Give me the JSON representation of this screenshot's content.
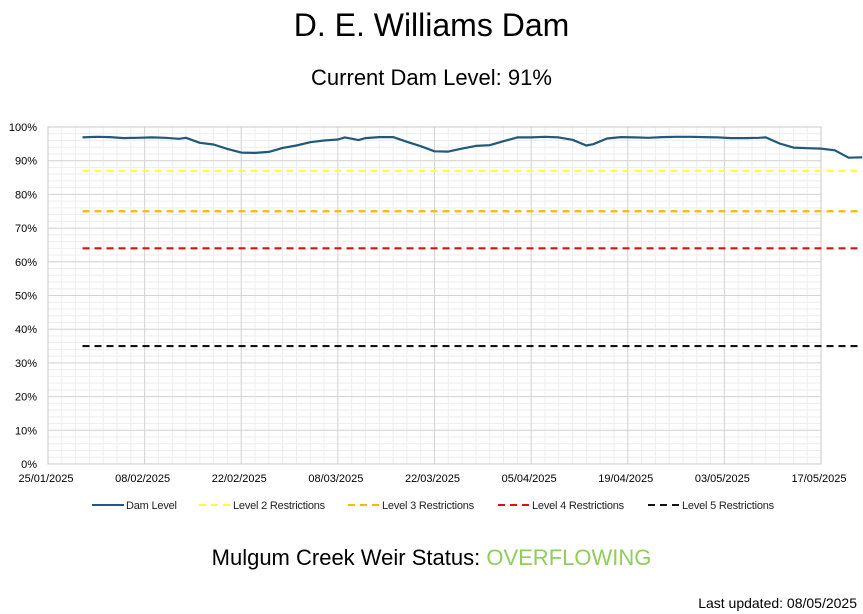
{
  "page": {
    "title": "D. E. Williams Dam",
    "subtitle": "Current Dam Level: 91%",
    "weir_label": "Mulgum Creek Weir Status:",
    "weir_status": "OVERFLOWING",
    "weir_status_color": "#8fce5a",
    "last_updated": "Last updated: 08/05/2025"
  },
  "chart_data": {
    "type": "line",
    "title": "",
    "xlabel": "",
    "ylabel": "",
    "x_range": [
      "2025-01-25",
      "2025-05-17"
    ],
    "x_ticks": [
      "25/01/2025",
      "08/02/2025",
      "22/02/2025",
      "08/03/2025",
      "22/03/2025",
      "05/04/2025",
      "19/04/2025",
      "03/05/2025",
      "17/05/2025"
    ],
    "ylim": [
      0,
      100
    ],
    "y_ticks": [
      "0%",
      "10%",
      "20%",
      "30%",
      "40%",
      "50%",
      "60%",
      "70%",
      "80%",
      "90%",
      "100%"
    ],
    "grid": true,
    "legend_position": "bottom",
    "series": [
      {
        "name": "Dam Level",
        "color": "#1f5a7a",
        "style": "solid",
        "points": [
          [
            "2025-01-30",
            96.9
          ],
          [
            "2025-02-01",
            97.1
          ],
          [
            "2025-02-03",
            97.0
          ],
          [
            "2025-02-05",
            96.7
          ],
          [
            "2025-02-07",
            96.8
          ],
          [
            "2025-02-09",
            96.9
          ],
          [
            "2025-02-11",
            96.8
          ],
          [
            "2025-02-13",
            96.5
          ],
          [
            "2025-02-14",
            96.8
          ],
          [
            "2025-02-16",
            95.3
          ],
          [
            "2025-02-18",
            94.8
          ],
          [
            "2025-02-20",
            93.5
          ],
          [
            "2025-02-22",
            92.4
          ],
          [
            "2025-02-24",
            92.3
          ],
          [
            "2025-02-26",
            92.6
          ],
          [
            "2025-02-28",
            93.8
          ],
          [
            "2025-03-02",
            94.5
          ],
          [
            "2025-03-04",
            95.5
          ],
          [
            "2025-03-06",
            96.0
          ],
          [
            "2025-03-08",
            96.3
          ],
          [
            "2025-03-09",
            96.9
          ],
          [
            "2025-03-11",
            96.1
          ],
          [
            "2025-03-12",
            96.7
          ],
          [
            "2025-03-14",
            97.0
          ],
          [
            "2025-03-16",
            97.0
          ],
          [
            "2025-03-18",
            95.6
          ],
          [
            "2025-03-20",
            94.3
          ],
          [
            "2025-03-22",
            92.8
          ],
          [
            "2025-03-24",
            92.7
          ],
          [
            "2025-03-26",
            93.6
          ],
          [
            "2025-03-28",
            94.4
          ],
          [
            "2025-03-30",
            94.6
          ],
          [
            "2025-04-01",
            95.8
          ],
          [
            "2025-04-03",
            96.9
          ],
          [
            "2025-04-05",
            96.9
          ],
          [
            "2025-04-07",
            97.1
          ],
          [
            "2025-04-09",
            96.9
          ],
          [
            "2025-04-11",
            96.2
          ],
          [
            "2025-04-13",
            94.5
          ],
          [
            "2025-04-14",
            94.9
          ],
          [
            "2025-04-16",
            96.6
          ],
          [
            "2025-04-18",
            97.0
          ],
          [
            "2025-04-20",
            96.9
          ],
          [
            "2025-04-22",
            96.8
          ],
          [
            "2025-04-24",
            97.0
          ],
          [
            "2025-04-26",
            97.1
          ],
          [
            "2025-04-28",
            97.1
          ],
          [
            "2025-04-30",
            97.0
          ],
          [
            "2025-05-02",
            96.9
          ],
          [
            "2025-05-04",
            96.7
          ],
          [
            "2025-05-06",
            96.7
          ],
          [
            "2025-05-08",
            96.8
          ],
          [
            "2025-05-09",
            96.9
          ],
          [
            "2025-05-11",
            95.1
          ],
          [
            "2025-05-13",
            93.9
          ],
          [
            "2025-05-15",
            93.7
          ],
          [
            "2025-05-17",
            93.6
          ],
          [
            "2025-05-19",
            93.1
          ],
          [
            "2025-05-21",
            90.9
          ],
          [
            "2025-05-23",
            91.0
          ]
        ]
      },
      {
        "name": "Level 2 Restrictions",
        "color": "#ffff33",
        "style": "dashed",
        "value": 87,
        "x_span": [
          "2025-01-30",
          "2025-05-23"
        ]
      },
      {
        "name": "Level 3 Restrictions",
        "color": "#ffb800",
        "style": "dashed",
        "value": 75,
        "x_span": [
          "2025-01-30",
          "2025-05-23"
        ]
      },
      {
        "name": "Level 4 Restrictions",
        "color": "#dd1111",
        "style": "dashed",
        "value": 64,
        "x_span": [
          "2025-01-30",
          "2025-05-23"
        ]
      },
      {
        "name": "Level 5 Restrictions",
        "color": "#111111",
        "style": "dashed",
        "value": 35,
        "x_span": [
          "2025-01-30",
          "2025-05-23"
        ]
      }
    ]
  }
}
